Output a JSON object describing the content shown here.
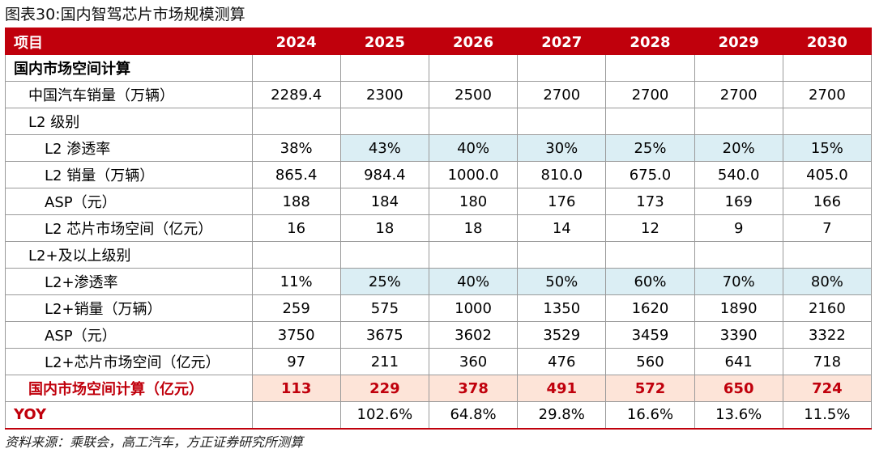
{
  "title": "图表30:国内智驾芯片市场规模测算",
  "header": {
    "item": "项目",
    "years": [
      "2024",
      "2025",
      "2026",
      "2027",
      "2028",
      "2029",
      "2030"
    ]
  },
  "rows": [
    {
      "label": "国内市场空间计算",
      "level": 0,
      "values": [
        "",
        "",
        "",
        "",
        "",
        "",
        ""
      ],
      "style": "section"
    },
    {
      "label": "中国汽车销量（万辆）",
      "level": 1,
      "values": [
        "2289.4",
        "2300",
        "2500",
        "2700",
        "2700",
        "2700",
        "2700"
      ],
      "style": "normal"
    },
    {
      "label": "L2 级别",
      "level": 1,
      "values": [
        "",
        "",
        "",
        "",
        "",
        "",
        ""
      ],
      "style": "normal"
    },
    {
      "label": "L2 渗透率",
      "level": 2,
      "values": [
        "38%",
        "43%",
        "40%",
        "30%",
        "25%",
        "20%",
        "15%"
      ],
      "style": "blue"
    },
    {
      "label": "L2 销量（万辆）",
      "level": 2,
      "values": [
        "865.4",
        "984.4",
        "1000.0",
        "810.0",
        "675.0",
        "540.0",
        "405.0"
      ],
      "style": "normal"
    },
    {
      "label": "ASP（元）",
      "level": 2,
      "values": [
        "188",
        "184",
        "180",
        "176",
        "173",
        "169",
        "166"
      ],
      "style": "normal"
    },
    {
      "label": "L2 芯片市场空间（亿元）",
      "level": 2,
      "values": [
        "16",
        "18",
        "18",
        "14",
        "12",
        "9",
        "7"
      ],
      "style": "normal"
    },
    {
      "label": "L2+及以上级别",
      "level": 1,
      "values": [
        "",
        "",
        "",
        "",
        "",
        "",
        ""
      ],
      "style": "normal"
    },
    {
      "label": "L2+渗透率",
      "level": 2,
      "values": [
        "11%",
        "25%",
        "40%",
        "50%",
        "60%",
        "70%",
        "80%"
      ],
      "style": "blue"
    },
    {
      "label": "L2+销量（万辆）",
      "level": 2,
      "values": [
        "259",
        "575",
        "1000",
        "1350",
        "1620",
        "1890",
        "2160"
      ],
      "style": "normal"
    },
    {
      "label": "ASP（元）",
      "level": 2,
      "values": [
        "3750",
        "3675",
        "3602",
        "3529",
        "3459",
        "3390",
        "3322"
      ],
      "style": "normal"
    },
    {
      "label": "L2+芯片市场空间（亿元）",
      "level": 2,
      "values": [
        "97",
        "211",
        "360",
        "476",
        "560",
        "641",
        "718"
      ],
      "style": "normal"
    },
    {
      "label": "国内市场空间计算（亿元）",
      "level": 1,
      "values": [
        "113",
        "229",
        "378",
        "491",
        "572",
        "650",
        "724"
      ],
      "style": "total"
    },
    {
      "label": "YOY",
      "level": 0,
      "values": [
        "",
        "102.6%",
        "64.8%",
        "29.8%",
        "16.6%",
        "13.6%",
        "11.5%"
      ],
      "style": "yoy"
    }
  ],
  "source": "资料来源：乘联会，高工汽车，方正证券研究所测算",
  "colors": {
    "accent": "#c0000c",
    "highlight_blue": "#dbeef4",
    "highlight_pink": "#fde4d8"
  }
}
